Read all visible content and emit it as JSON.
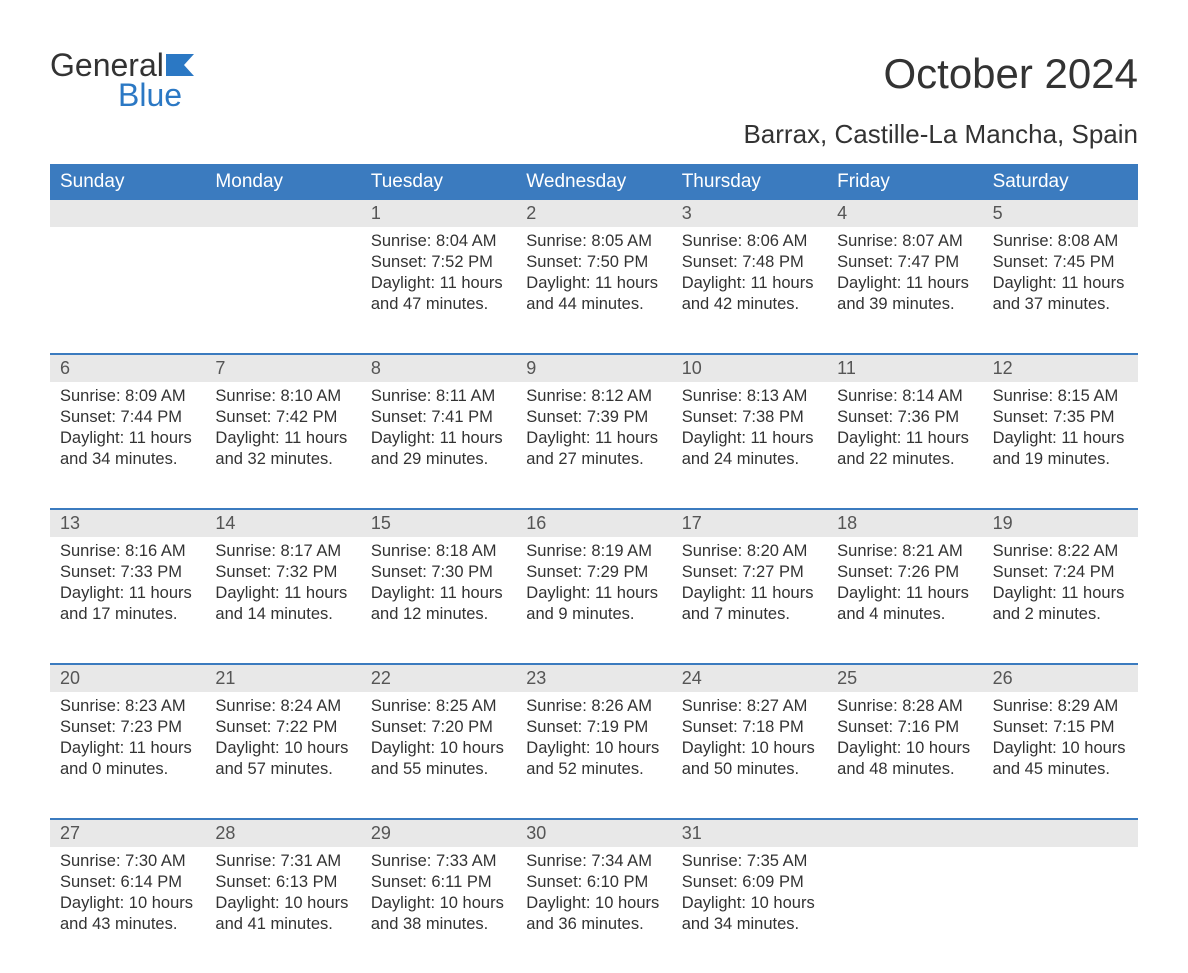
{
  "logo": {
    "line1": "General",
    "line2": "Blue"
  },
  "title": "October 2024",
  "subtitle": "Barrax, Castille-La Mancha, Spain",
  "colors": {
    "header_bg": "#3b7bbf",
    "header_text": "#ffffff",
    "daynum_bg": "#e8e8e8",
    "text": "#333333",
    "week_border": "#3b7bbf",
    "logo_gray": "#333333",
    "logo_blue": "#2b78c4",
    "background": "#ffffff"
  },
  "typography": {
    "title_fontsize": 42,
    "subtitle_fontsize": 26,
    "header_fontsize": 19,
    "daynum_fontsize": 18,
    "cell_fontsize": 16.5,
    "font_family": "Arial"
  },
  "layout": {
    "columns": 7,
    "rows": 5,
    "cell_min_height": 126
  },
  "columns": [
    "Sunday",
    "Monday",
    "Tuesday",
    "Wednesday",
    "Thursday",
    "Friday",
    "Saturday"
  ],
  "weeks": [
    [
      {
        "day": "",
        "sunrise": "",
        "sunset": "",
        "daylight": ""
      },
      {
        "day": "",
        "sunrise": "",
        "sunset": "",
        "daylight": ""
      },
      {
        "day": "1",
        "sunrise": "Sunrise: 8:04 AM",
        "sunset": "Sunset: 7:52 PM",
        "daylight": "Daylight: 11 hours and 47 minutes."
      },
      {
        "day": "2",
        "sunrise": "Sunrise: 8:05 AM",
        "sunset": "Sunset: 7:50 PM",
        "daylight": "Daylight: 11 hours and 44 minutes."
      },
      {
        "day": "3",
        "sunrise": "Sunrise: 8:06 AM",
        "sunset": "Sunset: 7:48 PM",
        "daylight": "Daylight: 11 hours and 42 minutes."
      },
      {
        "day": "4",
        "sunrise": "Sunrise: 8:07 AM",
        "sunset": "Sunset: 7:47 PM",
        "daylight": "Daylight: 11 hours and 39 minutes."
      },
      {
        "day": "5",
        "sunrise": "Sunrise: 8:08 AM",
        "sunset": "Sunset: 7:45 PM",
        "daylight": "Daylight: 11 hours and 37 minutes."
      }
    ],
    [
      {
        "day": "6",
        "sunrise": "Sunrise: 8:09 AM",
        "sunset": "Sunset: 7:44 PM",
        "daylight": "Daylight: 11 hours and 34 minutes."
      },
      {
        "day": "7",
        "sunrise": "Sunrise: 8:10 AM",
        "sunset": "Sunset: 7:42 PM",
        "daylight": "Daylight: 11 hours and 32 minutes."
      },
      {
        "day": "8",
        "sunrise": "Sunrise: 8:11 AM",
        "sunset": "Sunset: 7:41 PM",
        "daylight": "Daylight: 11 hours and 29 minutes."
      },
      {
        "day": "9",
        "sunrise": "Sunrise: 8:12 AM",
        "sunset": "Sunset: 7:39 PM",
        "daylight": "Daylight: 11 hours and 27 minutes."
      },
      {
        "day": "10",
        "sunrise": "Sunrise: 8:13 AM",
        "sunset": "Sunset: 7:38 PM",
        "daylight": "Daylight: 11 hours and 24 minutes."
      },
      {
        "day": "11",
        "sunrise": "Sunrise: 8:14 AM",
        "sunset": "Sunset: 7:36 PM",
        "daylight": "Daylight: 11 hours and 22 minutes."
      },
      {
        "day": "12",
        "sunrise": "Sunrise: 8:15 AM",
        "sunset": "Sunset: 7:35 PM",
        "daylight": "Daylight: 11 hours and 19 minutes."
      }
    ],
    [
      {
        "day": "13",
        "sunrise": "Sunrise: 8:16 AM",
        "sunset": "Sunset: 7:33 PM",
        "daylight": "Daylight: 11 hours and 17 minutes."
      },
      {
        "day": "14",
        "sunrise": "Sunrise: 8:17 AM",
        "sunset": "Sunset: 7:32 PM",
        "daylight": "Daylight: 11 hours and 14 minutes."
      },
      {
        "day": "15",
        "sunrise": "Sunrise: 8:18 AM",
        "sunset": "Sunset: 7:30 PM",
        "daylight": "Daylight: 11 hours and 12 minutes."
      },
      {
        "day": "16",
        "sunrise": "Sunrise: 8:19 AM",
        "sunset": "Sunset: 7:29 PM",
        "daylight": "Daylight: 11 hours and 9 minutes."
      },
      {
        "day": "17",
        "sunrise": "Sunrise: 8:20 AM",
        "sunset": "Sunset: 7:27 PM",
        "daylight": "Daylight: 11 hours and 7 minutes."
      },
      {
        "day": "18",
        "sunrise": "Sunrise: 8:21 AM",
        "sunset": "Sunset: 7:26 PM",
        "daylight": "Daylight: 11 hours and 4 minutes."
      },
      {
        "day": "19",
        "sunrise": "Sunrise: 8:22 AM",
        "sunset": "Sunset: 7:24 PM",
        "daylight": "Daylight: 11 hours and 2 minutes."
      }
    ],
    [
      {
        "day": "20",
        "sunrise": "Sunrise: 8:23 AM",
        "sunset": "Sunset: 7:23 PM",
        "daylight": "Daylight: 11 hours and 0 minutes."
      },
      {
        "day": "21",
        "sunrise": "Sunrise: 8:24 AM",
        "sunset": "Sunset: 7:22 PM",
        "daylight": "Daylight: 10 hours and 57 minutes."
      },
      {
        "day": "22",
        "sunrise": "Sunrise: 8:25 AM",
        "sunset": "Sunset: 7:20 PM",
        "daylight": "Daylight: 10 hours and 55 minutes."
      },
      {
        "day": "23",
        "sunrise": "Sunrise: 8:26 AM",
        "sunset": "Sunset: 7:19 PM",
        "daylight": "Daylight: 10 hours and 52 minutes."
      },
      {
        "day": "24",
        "sunrise": "Sunrise: 8:27 AM",
        "sunset": "Sunset: 7:18 PM",
        "daylight": "Daylight: 10 hours and 50 minutes."
      },
      {
        "day": "25",
        "sunrise": "Sunrise: 8:28 AM",
        "sunset": "Sunset: 7:16 PM",
        "daylight": "Daylight: 10 hours and 48 minutes."
      },
      {
        "day": "26",
        "sunrise": "Sunrise: 8:29 AM",
        "sunset": "Sunset: 7:15 PM",
        "daylight": "Daylight: 10 hours and 45 minutes."
      }
    ],
    [
      {
        "day": "27",
        "sunrise": "Sunrise: 7:30 AM",
        "sunset": "Sunset: 6:14 PM",
        "daylight": "Daylight: 10 hours and 43 minutes."
      },
      {
        "day": "28",
        "sunrise": "Sunrise: 7:31 AM",
        "sunset": "Sunset: 6:13 PM",
        "daylight": "Daylight: 10 hours and 41 minutes."
      },
      {
        "day": "29",
        "sunrise": "Sunrise: 7:33 AM",
        "sunset": "Sunset: 6:11 PM",
        "daylight": "Daylight: 10 hours and 38 minutes."
      },
      {
        "day": "30",
        "sunrise": "Sunrise: 7:34 AM",
        "sunset": "Sunset: 6:10 PM",
        "daylight": "Daylight: 10 hours and 36 minutes."
      },
      {
        "day": "31",
        "sunrise": "Sunrise: 7:35 AM",
        "sunset": "Sunset: 6:09 PM",
        "daylight": "Daylight: 10 hours and 34 minutes."
      },
      {
        "day": "",
        "sunrise": "",
        "sunset": "",
        "daylight": ""
      },
      {
        "day": "",
        "sunrise": "",
        "sunset": "",
        "daylight": ""
      }
    ]
  ]
}
